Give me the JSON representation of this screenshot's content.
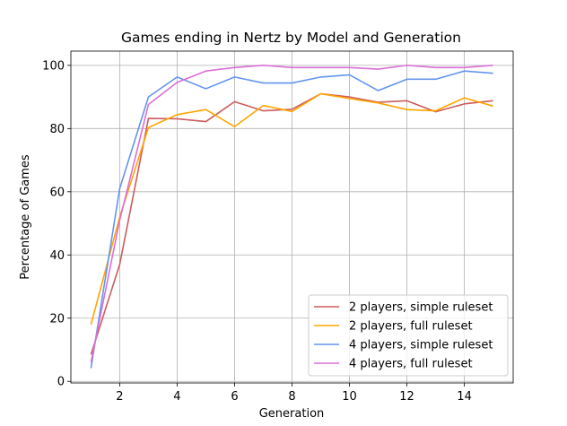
{
  "chart_data": {
    "type": "line",
    "title": "Games ending in Nertz by Model and Generation",
    "xlabel": "Generation",
    "ylabel": "Percentage of Games",
    "xlim": [
      0.3,
      15.7
    ],
    "ylim": [
      -0.5,
      104.5
    ],
    "xticks": [
      2,
      4,
      6,
      8,
      10,
      12,
      14
    ],
    "yticks": [
      0,
      20,
      40,
      60,
      80,
      100
    ],
    "grid": true,
    "legend_position": "lower-right",
    "x": [
      1,
      2,
      3,
      4,
      5,
      6,
      7,
      8,
      9,
      10,
      11,
      12,
      13,
      14,
      15
    ],
    "series": [
      {
        "name": "2 players, simple ruleset",
        "color": "#cd5c5c",
        "values": [
          8.5,
          37,
          83.2,
          83.1,
          82.2,
          88.5,
          85.6,
          86.1,
          91.0,
          90.0,
          88.3,
          88.8,
          85.3,
          87.8,
          88.8
        ]
      },
      {
        "name": "2 players, full ruleset",
        "color": "#ffa500",
        "values": [
          18.0,
          52,
          80.3,
          84.4,
          86.0,
          80.6,
          87.3,
          85.4,
          91.0,
          89.5,
          88.1,
          86.0,
          85.6,
          89.7,
          87.1
        ]
      },
      {
        "name": "4 players, simple ruleset",
        "color": "#6495ed",
        "values": [
          4.2,
          61,
          90.0,
          96.3,
          92.6,
          96.3,
          94.4,
          94.4,
          96.3,
          97.0,
          92.0,
          95.6,
          95.6,
          98.2,
          97.5
        ]
      },
      {
        "name": "4 players, full ruleset",
        "color": "#da70d6",
        "values": [
          6.0,
          51,
          87.6,
          94.6,
          98.2,
          99.3,
          100.0,
          99.3,
          99.3,
          99.3,
          98.8,
          100.0,
          99.3,
          99.3,
          100.0
        ]
      }
    ]
  }
}
